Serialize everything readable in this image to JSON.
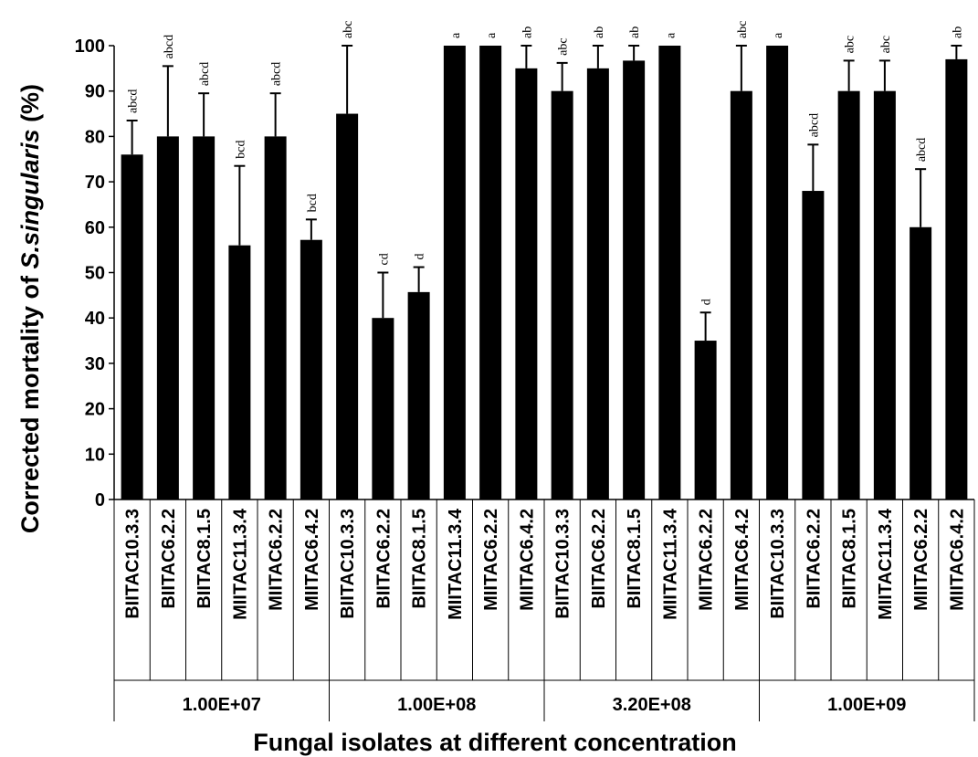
{
  "chart_data": {
    "type": "bar",
    "ylabel_prefix": "Corrected mortality of ",
    "ylabel_italic": "S.singularis",
    "ylabel_suffix": " (%)",
    "xlabel": "Fungal isolates at different concentration",
    "ylim": [
      0,
      100
    ],
    "yticks": [
      0,
      10,
      20,
      30,
      40,
      50,
      60,
      70,
      80,
      90,
      100
    ],
    "bar_color": "#000000",
    "groups": [
      {
        "label": "1.00E+07",
        "bars": [
          {
            "category": "BIITAC10.3.3",
            "value": 76,
            "error": 7.5,
            "letters": "abcd"
          },
          {
            "category": "BIITAC6.2.2",
            "value": 80,
            "error": 15.5,
            "letters": "abcd"
          },
          {
            "category": "BIITAC8.1.5",
            "value": 80,
            "error": 9.5,
            "letters": "abcd"
          },
          {
            "category": "MIITAC11.3.4",
            "value": 56,
            "error": 17.5,
            "letters": "bcd"
          },
          {
            "category": "MIITAC6.2.2",
            "value": 80,
            "error": 9.5,
            "letters": "abcd"
          },
          {
            "category": "MIITAC6.4.2",
            "value": 57.2,
            "error": 4.5,
            "letters": "bcd"
          }
        ]
      },
      {
        "label": "1.00E+08",
        "bars": [
          {
            "category": "BIITAC10.3.3",
            "value": 85,
            "error": 15,
            "letters": "abc"
          },
          {
            "category": "BIITAC6.2.2",
            "value": 40,
            "error": 10,
            "letters": "cd"
          },
          {
            "category": "BIITAC8.1.5",
            "value": 45.7,
            "error": 5.5,
            "letters": "d"
          },
          {
            "category": "MIITAC11.3.4",
            "value": 100,
            "error": 0,
            "letters": "a"
          },
          {
            "category": "MIITAC6.2.2",
            "value": 100,
            "error": 0,
            "letters": "a"
          },
          {
            "category": "MIITAC6.4.2",
            "value": 95,
            "error": 5,
            "letters": "ab"
          }
        ]
      },
      {
        "label": "3.20E+08",
        "bars": [
          {
            "category": "BIITAC10.3.3",
            "value": 90,
            "error": 6.2,
            "letters": "abc"
          },
          {
            "category": "BIITAC6.2.2",
            "value": 95,
            "error": 5,
            "letters": "ab"
          },
          {
            "category": "BIITAC8.1.5",
            "value": 96.7,
            "error": 3.3,
            "letters": "ab"
          },
          {
            "category": "MIITAC11.3.4",
            "value": 100,
            "error": 0,
            "letters": "a"
          },
          {
            "category": "MIITAC6.2.2",
            "value": 35,
            "error": 6.2,
            "letters": "d"
          },
          {
            "category": "MIITAC6.4.2",
            "value": 90,
            "error": 10,
            "letters": "abc"
          }
        ]
      },
      {
        "label": "1.00E+09",
        "bars": [
          {
            "category": "BIITAC10.3.3",
            "value": 100,
            "error": 0,
            "letters": "a"
          },
          {
            "category": "BIITAC6.2.2",
            "value": 68,
            "error": 10.2,
            "letters": "abcd"
          },
          {
            "category": "BIITAC8.1.5",
            "value": 90,
            "error": 6.7,
            "letters": "abc"
          },
          {
            "category": "MIITAC11.3.4",
            "value": 90,
            "error": 6.7,
            "letters": "abc"
          },
          {
            "category": "MIITAC6.2.2",
            "value": 60,
            "error": 12.8,
            "letters": "abcd"
          },
          {
            "category": "MIITAC6.4.2",
            "value": 97,
            "error": 3,
            "letters": "ab"
          }
        ]
      }
    ]
  }
}
